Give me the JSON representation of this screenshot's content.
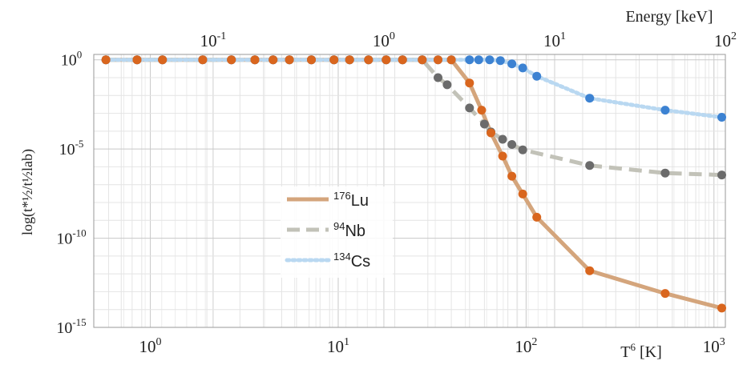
{
  "chart_data": {
    "type": "line",
    "x_scale": "log",
    "y_scale": "log",
    "grid": true,
    "xlim": [
      0.5,
      1150
    ],
    "ylim": [
      1e-15,
      2
    ],
    "top_xlim": [
      0.02,
      100
    ],
    "xlabel": {
      "base": "T",
      "sup": "6",
      "unit": " [K]"
    },
    "ylabel": "log(t*½/t½lab)",
    "top_xlabel": "Energy [keV]",
    "x_ticks": [
      {
        "value": 1,
        "base": "10",
        "exp": "0"
      },
      {
        "value": 10,
        "base": "10",
        "exp": "1"
      },
      {
        "value": 100,
        "base": "10",
        "exp": "2"
      },
      {
        "value": 1000,
        "base": "10",
        "exp": "3"
      }
    ],
    "y_ticks": [
      {
        "value": 1,
        "base": "10",
        "exp": "0"
      },
      {
        "value": 1e-05,
        "base": "10",
        "exp": "-5"
      },
      {
        "value": 1e-10,
        "base": "10",
        "exp": "-10"
      },
      {
        "value": 1e-15,
        "base": "10",
        "exp": "-15"
      }
    ],
    "top_ticks": [
      {
        "value": 0.1,
        "base": "10",
        "exp": "-1"
      },
      {
        "value": 1,
        "base": "10",
        "exp": "0"
      },
      {
        "value": 10,
        "base": "10",
        "exp": "1"
      },
      {
        "value": 100,
        "base": "10",
        "exp": "2"
      }
    ],
    "legend_placement": "center-left",
    "series": [
      {
        "name": "Lu",
        "mass": "176",
        "line_color": "#d4a57c",
        "marker_color": "#d9661e",
        "dash": "solid",
        "points": [
          [
            0.58,
            1
          ],
          [
            0.85,
            1
          ],
          [
            1.16,
            1
          ],
          [
            1.9,
            1
          ],
          [
            2.7,
            1
          ],
          [
            3.6,
            1
          ],
          [
            4.5,
            1
          ],
          [
            5.5,
            1
          ],
          [
            7.2,
            1
          ],
          [
            9.5,
            1
          ],
          [
            11.5,
            1
          ],
          [
            14.5,
            1
          ],
          [
            18,
            1
          ],
          [
            22,
            1
          ],
          [
            28,
            1
          ],
          [
            34,
            1
          ],
          [
            40,
            1
          ],
          [
            50,
            0.05
          ],
          [
            58,
            0.0015
          ],
          [
            65,
            8e-05
          ],
          [
            75,
            4e-06
          ],
          [
            84,
            3e-07
          ],
          [
            96,
            3e-08
          ],
          [
            114,
            1.5e-09
          ],
          [
            218,
            1.5e-12
          ],
          [
            550,
            8e-14
          ],
          [
            1100,
            1.2e-14
          ]
        ]
      },
      {
        "name": "Nb",
        "mass": "94",
        "line_color": "#c2c2b8",
        "marker_color": "#6b6b6b",
        "dash": "dashed",
        "points": [
          [
            0.58,
            1
          ],
          [
            0.85,
            1
          ],
          [
            1.16,
            1
          ],
          [
            1.9,
            1
          ],
          [
            2.7,
            1
          ],
          [
            3.6,
            1
          ],
          [
            4.5,
            1
          ],
          [
            5.5,
            1
          ],
          [
            7.2,
            1
          ],
          [
            9.5,
            1
          ],
          [
            11.5,
            1
          ],
          [
            14.5,
            1
          ],
          [
            18,
            1
          ],
          [
            22,
            1
          ],
          [
            28,
            1
          ],
          [
            34,
            0.1
          ],
          [
            38,
            0.04
          ],
          [
            50,
            0.002
          ],
          [
            60,
            0.00025
          ],
          [
            65,
            9e-05
          ],
          [
            75,
            3.5e-05
          ],
          [
            84,
            1.8e-05
          ],
          [
            96,
            9e-06
          ],
          [
            218,
            1.2e-06
          ],
          [
            550,
            4.5e-07
          ],
          [
            1100,
            3.5e-07
          ]
        ]
      },
      {
        "name": "Cs",
        "mass": "134",
        "line_color": "#b9d8f1",
        "marker_color": "#3c82d2",
        "dash": "dotted",
        "points": [
          [
            0.58,
            1
          ],
          [
            0.85,
            1
          ],
          [
            1.16,
            1
          ],
          [
            1.9,
            1
          ],
          [
            2.7,
            1
          ],
          [
            3.6,
            1
          ],
          [
            4.5,
            1
          ],
          [
            5.5,
            1
          ],
          [
            7.2,
            1
          ],
          [
            9.5,
            1
          ],
          [
            11.5,
            1
          ],
          [
            14.5,
            1
          ],
          [
            18,
            1
          ],
          [
            22,
            1
          ],
          [
            28,
            1
          ],
          [
            34,
            1
          ],
          [
            40,
            1
          ],
          [
            50,
            1
          ],
          [
            56,
            1
          ],
          [
            64,
            1
          ],
          [
            73,
            0.9
          ],
          [
            84,
            0.6
          ],
          [
            96,
            0.35
          ],
          [
            114,
            0.12
          ],
          [
            218,
            0.007
          ],
          [
            550,
            0.0015
          ],
          [
            1100,
            0.0006
          ]
        ]
      }
    ]
  }
}
